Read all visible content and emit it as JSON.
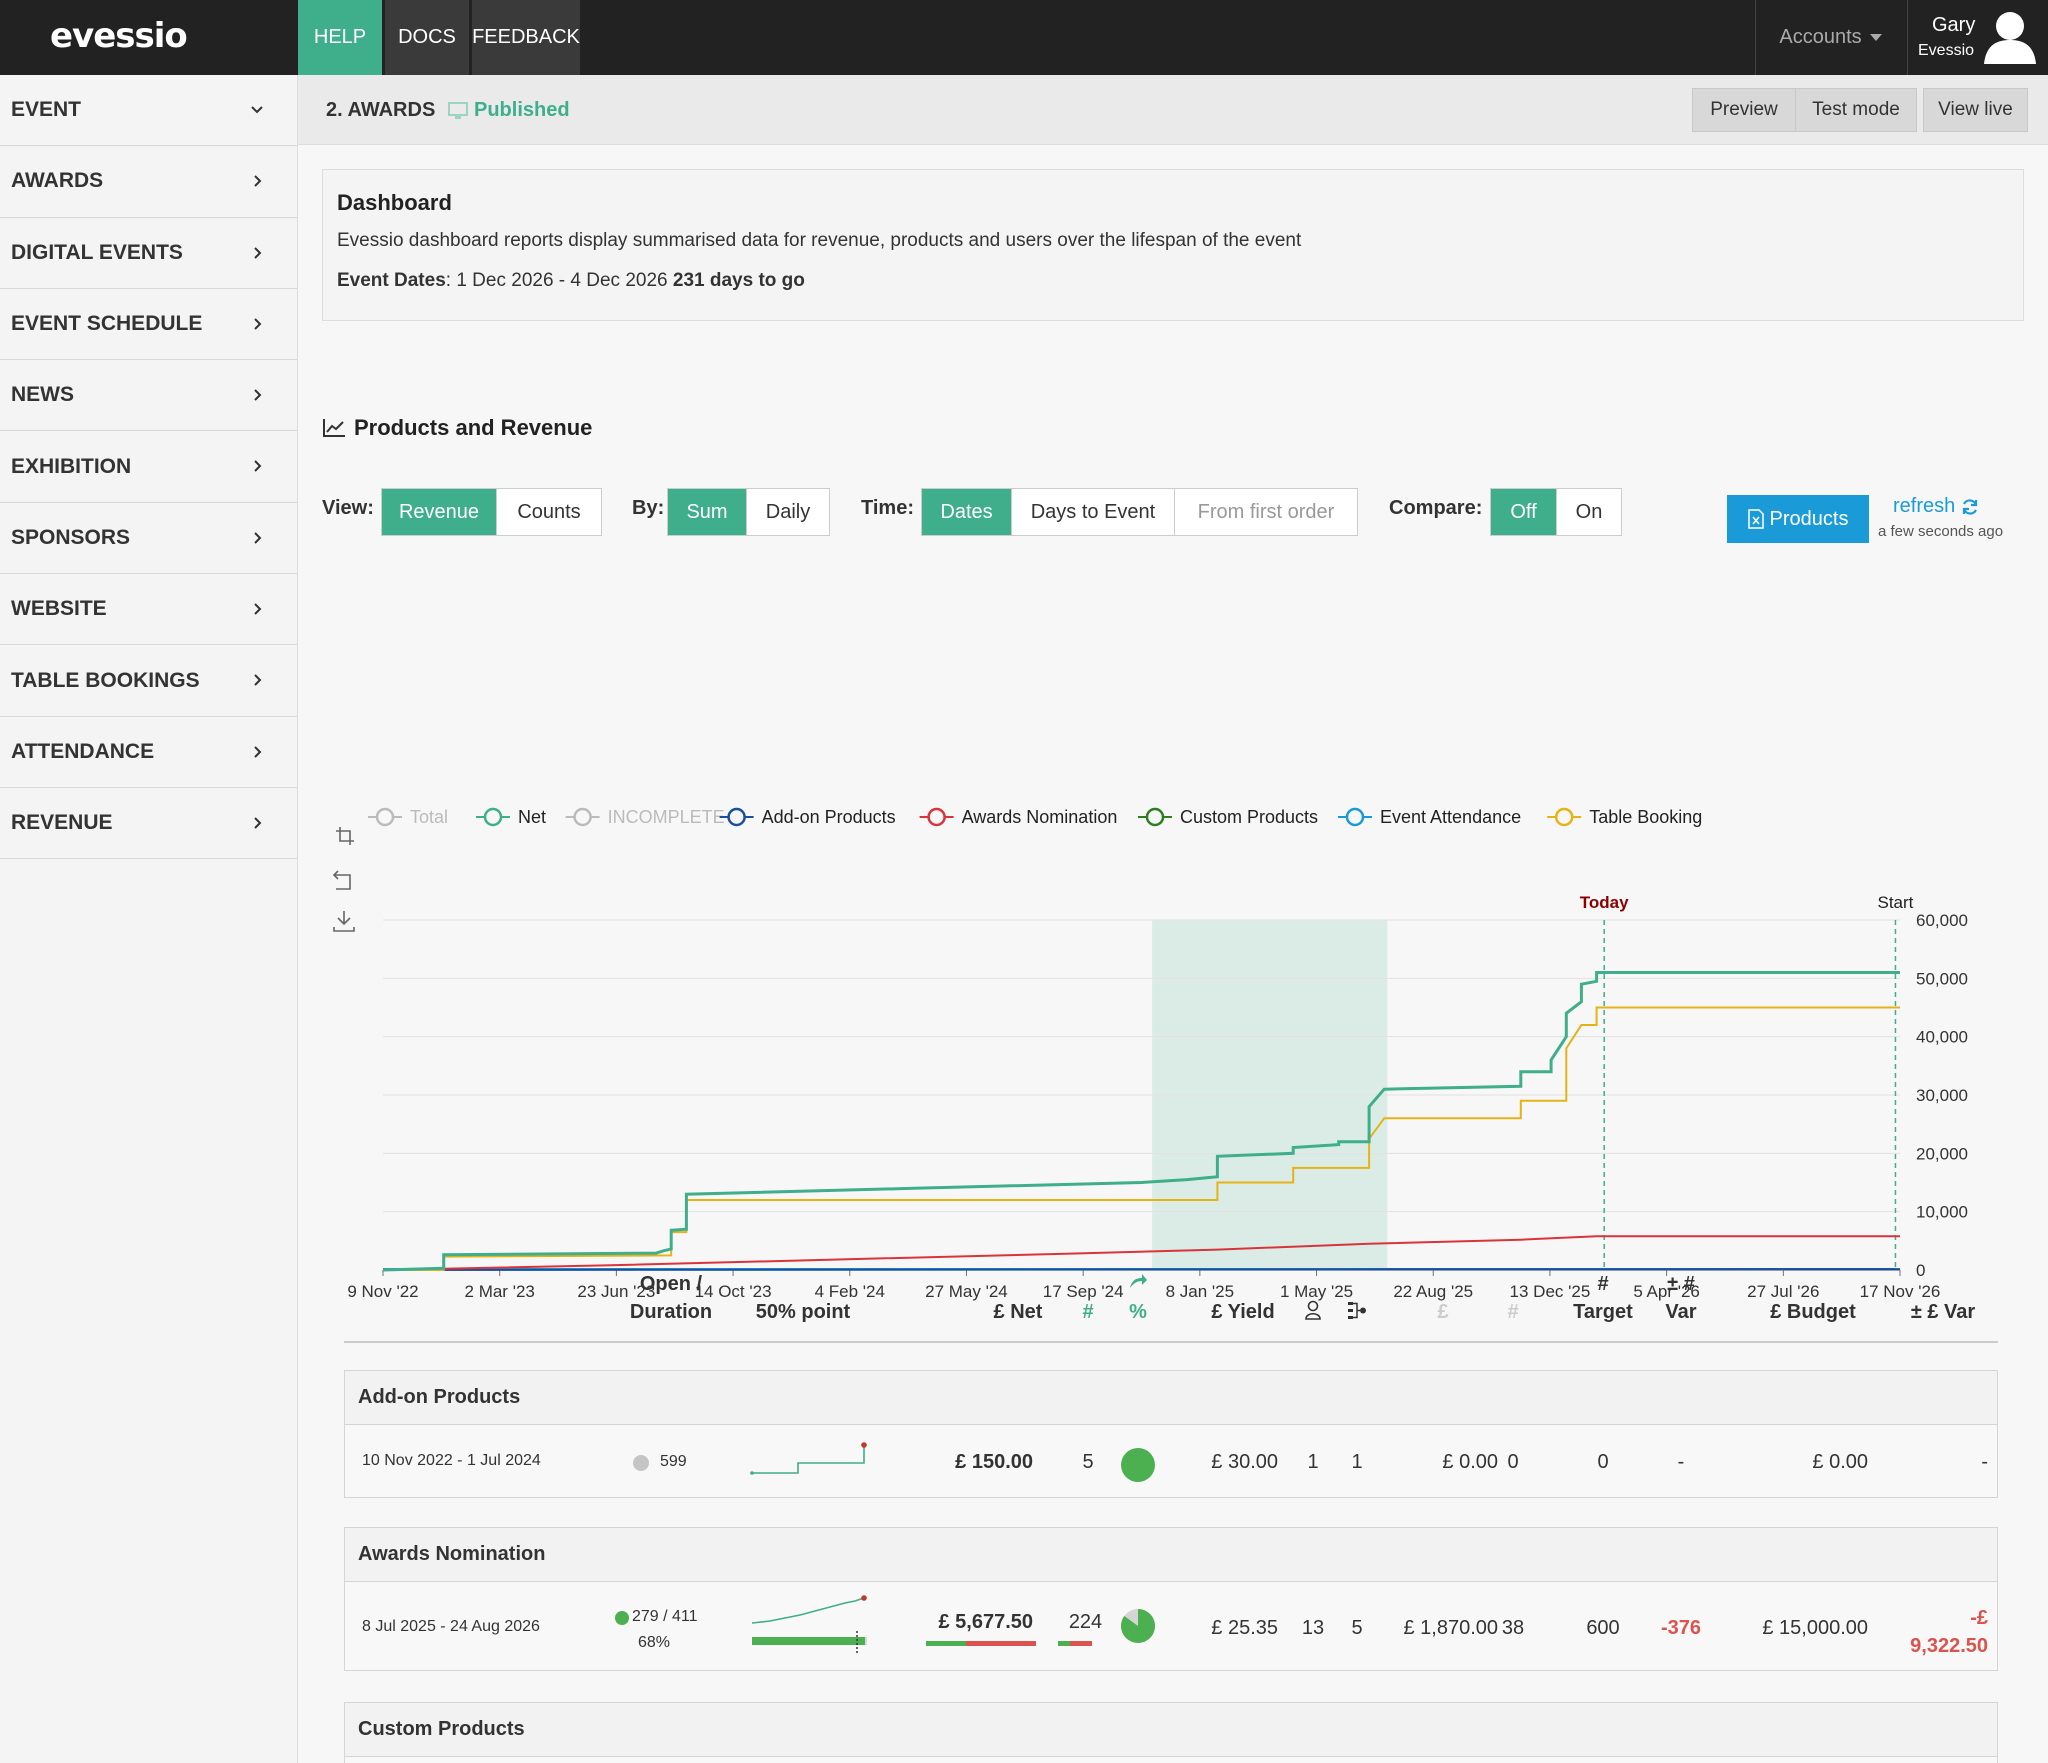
{
  "app": {
    "logo": "evessio"
  },
  "topnav": {
    "help": "HELP",
    "docs": "DOCS",
    "feedback": "FEEDBACK",
    "accounts": "Accounts",
    "user_name": "Gary",
    "user_org": "Evessio"
  },
  "sidebar": {
    "items": [
      {
        "label": "EVENT",
        "expanded": true
      },
      {
        "label": "AWARDS"
      },
      {
        "label": "DIGITAL EVENTS"
      },
      {
        "label": "EVENT SCHEDULE"
      },
      {
        "label": "NEWS"
      },
      {
        "label": "EXHIBITION"
      },
      {
        "label": "SPONSORS"
      },
      {
        "label": "WEBSITE"
      },
      {
        "label": "TABLE BOOKINGS"
      },
      {
        "label": "ATTENDANCE"
      },
      {
        "label": "REVENUE"
      }
    ]
  },
  "subheader": {
    "title": "2. AWARDS",
    "status": "Published",
    "preview": "Preview",
    "test_mode": "Test mode",
    "view_live": "View live"
  },
  "dashboard": {
    "title": "Dashboard",
    "description": "Evessio dashboard reports display summarised data for revenue, products and users over the lifespan of the event",
    "dates_label": "Event Dates",
    "dates_value": ": 1 Dec 2026 - 4 Dec 2026 ",
    "days_to_go": "231 days to go"
  },
  "section": {
    "title": "Products and Revenue"
  },
  "controls": {
    "view_label": "View:",
    "view_options": [
      "Revenue",
      "Counts"
    ],
    "by_label": "By:",
    "by_options": [
      "Sum",
      "Daily"
    ],
    "time_label": "Time:",
    "time_options": [
      "Dates",
      "Days to Event",
      "From first order"
    ],
    "compare_label": "Compare:",
    "compare_options": [
      "Off",
      "On"
    ],
    "products_button": "Products",
    "refresh_label": "refresh",
    "refresh_ago": "a few seconds ago"
  },
  "chart_data": {
    "type": "line",
    "x_ticks": [
      "9 Nov '22",
      "2 Mar '23",
      "23 Jun '23",
      "14 Oct '23",
      "4 Feb '24",
      "27 May '24",
      "17 Sep '24",
      "8 Jan '25",
      "1 May '25",
      "22 Aug '25",
      "13 Dec '25",
      "5 Apr '26",
      "27 Jul '26",
      "17 Nov '26"
    ],
    "y_ticks": [
      "0",
      "10,000",
      "20,000",
      "30,000",
      "40,000",
      "50,000",
      "60,000"
    ],
    "ylim": [
      0,
      60000
    ],
    "markers": [
      "Today",
      "Start"
    ],
    "legend": [
      {
        "name": "Total",
        "color": "#bbbbbb",
        "disabled": true
      },
      {
        "name": "Net",
        "color": "#3fae8b"
      },
      {
        "name": "INCOMPLETE",
        "color": "#bbbbbb",
        "disabled": true
      },
      {
        "name": "Add-on Products",
        "color": "#1a4fa0"
      },
      {
        "name": "Awards Nomination",
        "color": "#d9343b"
      },
      {
        "name": "Custom Products",
        "color": "#2e7d1e"
      },
      {
        "name": "Event Attendance",
        "color": "#1a9bd7"
      },
      {
        "name": "Table Booking",
        "color": "#e5b316"
      }
    ],
    "series": [
      {
        "name": "Net",
        "values": [
          [
            0,
            0
          ],
          [
            0.04,
            300
          ],
          [
            0.04,
            2600
          ],
          [
            0.18,
            2900
          ],
          [
            0.185,
            3300
          ],
          [
            0.19,
            3600
          ],
          [
            0.19,
            6800
          ],
          [
            0.2,
            7000
          ],
          [
            0.2,
            13000
          ],
          [
            0.35,
            14000
          ],
          [
            0.5,
            15000
          ],
          [
            0.53,
            15500
          ],
          [
            0.55,
            16000
          ],
          [
            0.55,
            19500
          ],
          [
            0.6,
            20000
          ],
          [
            0.6,
            21000
          ],
          [
            0.63,
            21500
          ],
          [
            0.63,
            22000
          ],
          [
            0.65,
            22000
          ],
          [
            0.65,
            28000
          ],
          [
            0.66,
            31000
          ],
          [
            0.75,
            31500
          ],
          [
            0.75,
            34000
          ],
          [
            0.77,
            34000
          ],
          [
            0.77,
            36000
          ],
          [
            0.78,
            40000
          ],
          [
            0.78,
            44000
          ],
          [
            0.79,
            46000
          ],
          [
            0.79,
            49000
          ],
          [
            0.8,
            49500
          ],
          [
            0.8,
            51000
          ],
          [
            1.0,
            51000
          ]
        ]
      },
      {
        "name": "Table Booking",
        "values": [
          [
            0,
            0
          ],
          [
            0.04,
            0
          ],
          [
            0.04,
            2300
          ],
          [
            0.19,
            2500
          ],
          [
            0.19,
            6500
          ],
          [
            0.2,
            6500
          ],
          [
            0.2,
            12000
          ],
          [
            0.55,
            12000
          ],
          [
            0.55,
            15000
          ],
          [
            0.6,
            15000
          ],
          [
            0.6,
            17500
          ],
          [
            0.65,
            17500
          ],
          [
            0.65,
            22500
          ],
          [
            0.66,
            26000
          ],
          [
            0.75,
            26000
          ],
          [
            0.75,
            29000
          ],
          [
            0.78,
            29000
          ],
          [
            0.78,
            38000
          ],
          [
            0.79,
            42000
          ],
          [
            0.8,
            42000
          ],
          [
            0.8,
            45000
          ],
          [
            1.0,
            45000
          ]
        ]
      },
      {
        "name": "Awards Nomination",
        "values": [
          [
            0,
            0
          ],
          [
            0.15,
            800
          ],
          [
            0.3,
            1800
          ],
          [
            0.45,
            2800
          ],
          [
            0.55,
            3500
          ],
          [
            0.65,
            4500
          ],
          [
            0.75,
            5200
          ],
          [
            0.8,
            5800
          ],
          [
            1.0,
            5800
          ]
        ]
      },
      {
        "name": "Add-on Products",
        "values": [
          [
            0,
            0
          ],
          [
            0.5,
            100
          ],
          [
            1.0,
            150
          ]
        ]
      }
    ]
  },
  "table": {
    "headers": {
      "open_l1": "Open /",
      "open_l2": "Duration",
      "half": "50% point",
      "net": "£ Net",
      "count": "#",
      "pct": "%",
      "yield": "£ Yield",
      "gbp": "£",
      "hash": "#",
      "target_l1": "#",
      "target_l2": "Target",
      "var_l1": "± #",
      "var_l2": "Var",
      "budget": "£ Budget",
      "gvar": "± £ Var"
    },
    "groups": [
      {
        "name": "Add-on Products",
        "dates": "10 Nov 2022 - 1 Jul 2024",
        "open": "599",
        "net": "£ 150.00",
        "count": "5",
        "pct_fill": 1.0,
        "yield": "£ 30.00",
        "c1": "1",
        "c2": "1",
        "gbp": "£ 0.00",
        "hash": "0",
        "target": "0",
        "var": "-",
        "budget": "£ 0.00",
        "gvar": "-"
      },
      {
        "name": "Awards Nomination",
        "dates": "8 Jul 2025 - 24 Aug 2026",
        "open": "279 / 411",
        "open_pct": "68%",
        "net": "£ 5,677.50",
        "count": "224",
        "pct_fill": 0.85,
        "yield": "£ 25.35",
        "c1": "13",
        "c2": "5",
        "gbp": "£ 1,870.00",
        "hash": "38",
        "target": "600",
        "var": "-376",
        "budget": "£ 15,000.00",
        "gvar_l1": "-£",
        "gvar_l2": "9,322.50"
      },
      {
        "name": "Custom Products"
      }
    ]
  },
  "colors": {
    "accent": "#3fae8b",
    "blue": "#1a9bd7",
    "red": "#d9534f"
  }
}
